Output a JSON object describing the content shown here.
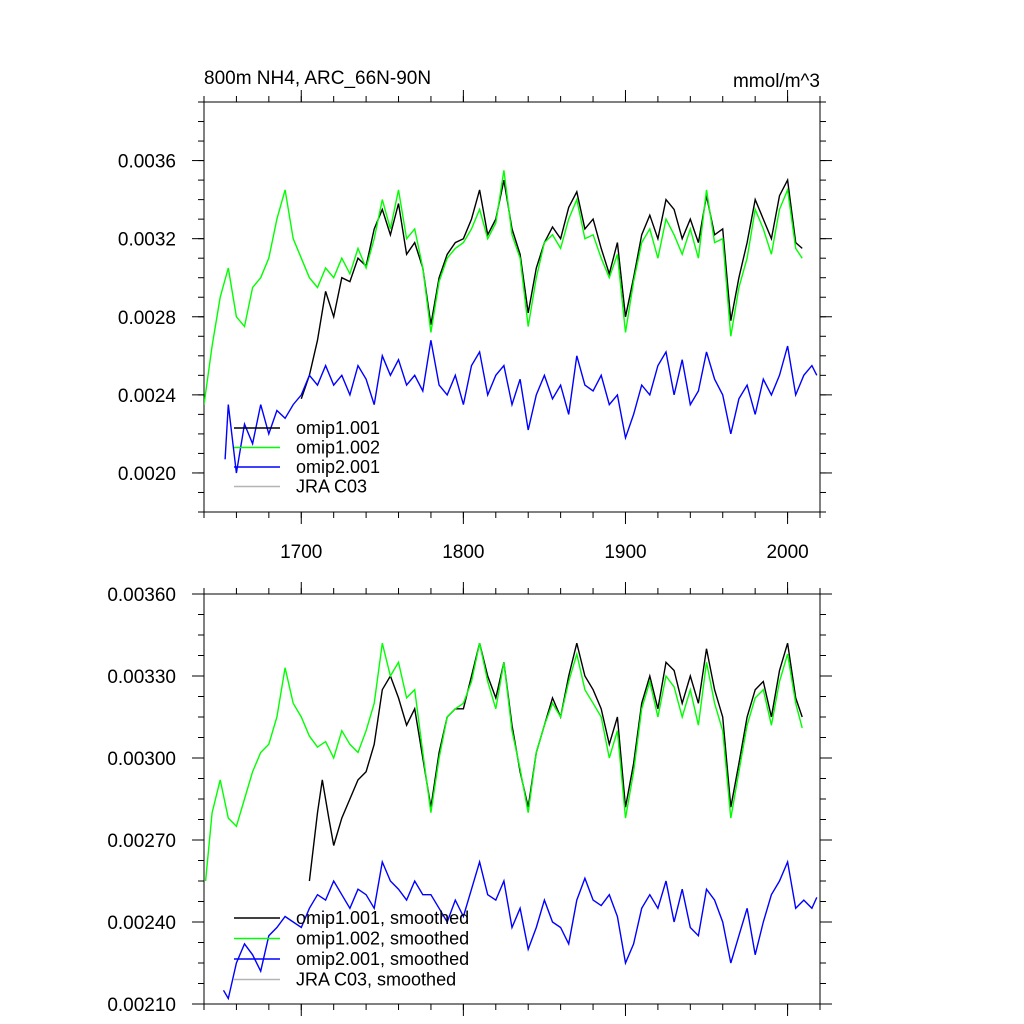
{
  "title_left": "800m NH4, ARC_66N-90N",
  "title_right": "mmol/m^3",
  "chart_data": [
    {
      "type": "line",
      "title": "800m NH4, ARC_66N-90N",
      "units": "mmol/m^3",
      "xlim": [
        1640,
        2020
      ],
      "ylim": [
        0.0018,
        0.0039
      ],
      "xticks": [
        1700,
        1800,
        1900,
        2000
      ],
      "xtick_labels": [
        "1700",
        "1800",
        "1900",
        "2000"
      ],
      "yticks": [
        0.002,
        0.0024,
        0.0028,
        0.0032,
        0.0036
      ],
      "ytick_labels": [
        "0.0020",
        "0.0024",
        "0.0028",
        "0.0032",
        "0.0036"
      ],
      "legend_position": "bottom-left",
      "series": [
        {
          "name": "omip1.001",
          "color": "#000000",
          "x": [
            1700,
            1705,
            1710,
            1715,
            1720,
            1725,
            1730,
            1735,
            1740,
            1745,
            1750,
            1755,
            1760,
            1765,
            1770,
            1775,
            1780,
            1785,
            1790,
            1795,
            1800,
            1805,
            1810,
            1815,
            1820,
            1825,
            1830,
            1835,
            1840,
            1845,
            1850,
            1855,
            1860,
            1865,
            1870,
            1875,
            1880,
            1885,
            1890,
            1895,
            1900,
            1905,
            1910,
            1915,
            1920,
            1925,
            1930,
            1935,
            1940,
            1945,
            1950,
            1955,
            1960,
            1965,
            1970,
            1975,
            1980,
            1985,
            1990,
            1995,
            2000,
            2005,
            2009
          ],
          "y": [
            0.00238,
            0.0025,
            0.00268,
            0.00293,
            0.0028,
            0.003,
            0.00298,
            0.0031,
            0.00306,
            0.00325,
            0.00335,
            0.00322,
            0.00338,
            0.00312,
            0.00318,
            0.00305,
            0.00276,
            0.003,
            0.00312,
            0.00318,
            0.0032,
            0.0033,
            0.00345,
            0.00322,
            0.0033,
            0.0035,
            0.00325,
            0.00312,
            0.00282,
            0.00305,
            0.00318,
            0.00326,
            0.0032,
            0.00336,
            0.00344,
            0.00325,
            0.0033,
            0.00315,
            0.00302,
            0.00318,
            0.0028,
            0.003,
            0.00322,
            0.00332,
            0.0032,
            0.0034,
            0.00335,
            0.0032,
            0.0033,
            0.00318,
            0.00342,
            0.00322,
            0.00325,
            0.00278,
            0.003,
            0.00318,
            0.0034,
            0.0033,
            0.0032,
            0.00342,
            0.0035,
            0.00318,
            0.00315
          ]
        },
        {
          "name": "omip1.002",
          "color": "#00ff00",
          "x": [
            1640,
            1645,
            1650,
            1655,
            1660,
            1665,
            1670,
            1675,
            1680,
            1685,
            1690,
            1695,
            1700,
            1705,
            1710,
            1715,
            1720,
            1725,
            1730,
            1735,
            1740,
            1745,
            1750,
            1755,
            1760,
            1765,
            1770,
            1775,
            1780,
            1785,
            1790,
            1795,
            1800,
            1805,
            1810,
            1815,
            1820,
            1825,
            1830,
            1835,
            1840,
            1845,
            1850,
            1855,
            1860,
            1865,
            1870,
            1875,
            1880,
            1885,
            1890,
            1895,
            1900,
            1905,
            1910,
            1915,
            1920,
            1925,
            1930,
            1935,
            1940,
            1945,
            1950,
            1955,
            1960,
            1965,
            1970,
            1975,
            1980,
            1985,
            1990,
            1995,
            2000,
            2005,
            2009
          ],
          "y": [
            0.00235,
            0.00265,
            0.0029,
            0.00305,
            0.0028,
            0.00275,
            0.00295,
            0.003,
            0.0031,
            0.0033,
            0.00345,
            0.0032,
            0.0031,
            0.003,
            0.00295,
            0.00305,
            0.003,
            0.0031,
            0.00302,
            0.00315,
            0.00305,
            0.0032,
            0.0034,
            0.00325,
            0.00345,
            0.0032,
            0.00325,
            0.00305,
            0.00272,
            0.00298,
            0.0031,
            0.00315,
            0.00318,
            0.00325,
            0.00335,
            0.0032,
            0.00328,
            0.00355,
            0.00322,
            0.0031,
            0.00275,
            0.003,
            0.00318,
            0.00322,
            0.00315,
            0.0033,
            0.0034,
            0.0032,
            0.00322,
            0.0031,
            0.003,
            0.00312,
            0.00272,
            0.00298,
            0.00318,
            0.00325,
            0.0031,
            0.0033,
            0.00322,
            0.00312,
            0.00325,
            0.0031,
            0.00345,
            0.00318,
            0.0032,
            0.0027,
            0.00295,
            0.0031,
            0.00335,
            0.00325,
            0.00312,
            0.00335,
            0.00345,
            0.00315,
            0.0031
          ]
        },
        {
          "name": "omip2.001",
          "color": "#0000ff",
          "x": [
            1653,
            1655,
            1660,
            1665,
            1670,
            1675,
            1680,
            1685,
            1690,
            1695,
            1700,
            1705,
            1710,
            1715,
            1720,
            1725,
            1730,
            1735,
            1740,
            1745,
            1750,
            1755,
            1760,
            1765,
            1770,
            1775,
            1780,
            1785,
            1790,
            1795,
            1800,
            1805,
            1810,
            1815,
            1820,
            1825,
            1830,
            1835,
            1840,
            1845,
            1850,
            1855,
            1860,
            1865,
            1870,
            1875,
            1880,
            1885,
            1890,
            1895,
            1900,
            1905,
            1910,
            1915,
            1920,
            1925,
            1930,
            1935,
            1940,
            1945,
            1950,
            1955,
            1960,
            1965,
            1970,
            1975,
            1980,
            1985,
            1990,
            1995,
            2000,
            2005,
            2010,
            2015,
            2018
          ],
          "y": [
            0.00207,
            0.00235,
            0.002,
            0.00225,
            0.00215,
            0.00235,
            0.0022,
            0.00232,
            0.00228,
            0.00235,
            0.0024,
            0.0025,
            0.00245,
            0.00255,
            0.00245,
            0.0025,
            0.0024,
            0.00255,
            0.00248,
            0.00235,
            0.0026,
            0.0025,
            0.00258,
            0.00245,
            0.0025,
            0.00242,
            0.00268,
            0.00245,
            0.0024,
            0.0025,
            0.00235,
            0.00255,
            0.00262,
            0.0024,
            0.0025,
            0.00255,
            0.00235,
            0.00248,
            0.00222,
            0.0024,
            0.0025,
            0.00238,
            0.00245,
            0.0023,
            0.0026,
            0.00245,
            0.00242,
            0.0025,
            0.00235,
            0.0024,
            0.00218,
            0.0023,
            0.00245,
            0.0024,
            0.00255,
            0.00262,
            0.0024,
            0.00258,
            0.00235,
            0.00242,
            0.00262,
            0.00248,
            0.0024,
            0.0022,
            0.00238,
            0.00245,
            0.0023,
            0.00248,
            0.0024,
            0.0025,
            0.00265,
            0.0024,
            0.0025,
            0.00255,
            0.0025
          ]
        }
      ],
      "legend": [
        {
          "label": "omip1.001",
          "color": "#000000"
        },
        {
          "label": "omip1.002",
          "color": "#00ff00"
        },
        {
          "label": "omip2.001",
          "color": "#0000ff"
        },
        {
          "label": "JRA C03",
          "color": "#b4b4b4"
        }
      ]
    },
    {
      "type": "line",
      "xlim": [
        1640,
        2020
      ],
      "ylim": [
        0.0021,
        0.0036
      ],
      "yticks": [
        0.0021,
        0.0024,
        0.0027,
        0.003,
        0.0033,
        0.0036
      ],
      "ytick_labels": [
        "0.00210",
        "0.00240",
        "0.00270",
        "0.00300",
        "0.00330",
        "0.00360"
      ],
      "xticks": [
        1700,
        1800,
        1900,
        2000
      ],
      "legend_position": "bottom-left",
      "series": [
        {
          "name": "omip1.001, smoothed",
          "color": "#000000",
          "x": [
            1705,
            1710,
            1713,
            1717,
            1720,
            1725,
            1730,
            1735,
            1740,
            1745,
            1750,
            1755,
            1760,
            1765,
            1770,
            1775,
            1780,
            1785,
            1790,
            1795,
            1800,
            1805,
            1810,
            1815,
            1820,
            1825,
            1830,
            1835,
            1840,
            1845,
            1850,
            1855,
            1860,
            1865,
            1870,
            1875,
            1880,
            1885,
            1890,
            1895,
            1900,
            1905,
            1910,
            1915,
            1920,
            1925,
            1930,
            1935,
            1940,
            1945,
            1950,
            1955,
            1960,
            1965,
            1970,
            1975,
            1980,
            1985,
            1990,
            1995,
            2000,
            2005,
            2009
          ],
          "y": [
            0.00255,
            0.0028,
            0.00292,
            0.00278,
            0.00268,
            0.00278,
            0.00285,
            0.00292,
            0.00295,
            0.00305,
            0.00325,
            0.0033,
            0.00322,
            0.00312,
            0.00318,
            0.003,
            0.00282,
            0.00302,
            0.00315,
            0.00318,
            0.00318,
            0.0033,
            0.00342,
            0.0033,
            0.00322,
            0.00335,
            0.00312,
            0.00295,
            0.00282,
            0.00302,
            0.00312,
            0.00322,
            0.00315,
            0.0033,
            0.00342,
            0.0033,
            0.00325,
            0.00318,
            0.00305,
            0.00315,
            0.00282,
            0.00298,
            0.0032,
            0.0033,
            0.00318,
            0.00335,
            0.00332,
            0.0032,
            0.0033,
            0.0032,
            0.0034,
            0.00325,
            0.00315,
            0.00282,
            0.00298,
            0.00315,
            0.00325,
            0.00328,
            0.00315,
            0.00332,
            0.00342,
            0.00322,
            0.00315
          ]
        },
        {
          "name": "omip1.002, smoothed",
          "color": "#00ff00",
          "x": [
            1641,
            1645,
            1650,
            1655,
            1660,
            1665,
            1670,
            1675,
            1680,
            1685,
            1690,
            1695,
            1700,
            1705,
            1710,
            1715,
            1720,
            1725,
            1730,
            1735,
            1740,
            1745,
            1750,
            1755,
            1760,
            1765,
            1770,
            1775,
            1780,
            1785,
            1790,
            1795,
            1800,
            1805,
            1810,
            1815,
            1820,
            1825,
            1830,
            1835,
            1840,
            1845,
            1850,
            1855,
            1860,
            1865,
            1870,
            1875,
            1880,
            1885,
            1890,
            1895,
            1900,
            1905,
            1910,
            1915,
            1920,
            1925,
            1930,
            1935,
            1940,
            1945,
            1950,
            1955,
            1960,
            1965,
            1970,
            1975,
            1980,
            1985,
            1990,
            1995,
            2000,
            2005,
            2009
          ],
          "y": [
            0.00255,
            0.0028,
            0.00292,
            0.00278,
            0.00275,
            0.00285,
            0.00295,
            0.00302,
            0.00305,
            0.00315,
            0.00333,
            0.0032,
            0.00315,
            0.00308,
            0.00304,
            0.00306,
            0.003,
            0.0031,
            0.00305,
            0.00302,
            0.0031,
            0.0032,
            0.00342,
            0.0033,
            0.00335,
            0.00322,
            0.00325,
            0.00302,
            0.0028,
            0.003,
            0.00315,
            0.00318,
            0.0032,
            0.00328,
            0.00342,
            0.00328,
            0.00318,
            0.00335,
            0.0031,
            0.00296,
            0.0028,
            0.00302,
            0.00312,
            0.0032,
            0.00315,
            0.00328,
            0.00338,
            0.00325,
            0.0032,
            0.00315,
            0.003,
            0.0031,
            0.00278,
            0.00295,
            0.00318,
            0.00328,
            0.00315,
            0.0033,
            0.00326,
            0.00315,
            0.00325,
            0.00312,
            0.00335,
            0.0032,
            0.0031,
            0.00278,
            0.00295,
            0.00312,
            0.00322,
            0.00325,
            0.00312,
            0.00328,
            0.00338,
            0.0032,
            0.00311
          ]
        },
        {
          "name": "omip2.001, smoothed",
          "color": "#0000ff",
          "x": [
            1652,
            1655,
            1660,
            1665,
            1670,
            1675,
            1680,
            1685,
            1690,
            1695,
            1700,
            1705,
            1710,
            1715,
            1720,
            1725,
            1730,
            1735,
            1740,
            1745,
            1750,
            1755,
            1760,
            1765,
            1770,
            1775,
            1780,
            1785,
            1790,
            1795,
            1800,
            1805,
            1810,
            1815,
            1820,
            1825,
            1830,
            1835,
            1840,
            1845,
            1850,
            1855,
            1860,
            1865,
            1870,
            1875,
            1880,
            1885,
            1890,
            1895,
            1900,
            1905,
            1910,
            1915,
            1920,
            1925,
            1930,
            1935,
            1940,
            1945,
            1950,
            1955,
            1960,
            1965,
            1970,
            1975,
            1980,
            1985,
            1990,
            1995,
            2000,
            2005,
            2010,
            2015,
            2018
          ],
          "y": [
            0.00215,
            0.00212,
            0.00225,
            0.00232,
            0.00228,
            0.00222,
            0.00235,
            0.00238,
            0.00242,
            0.0024,
            0.00238,
            0.00245,
            0.0025,
            0.00248,
            0.00255,
            0.0025,
            0.00245,
            0.00252,
            0.0025,
            0.00245,
            0.00262,
            0.00255,
            0.00252,
            0.00248,
            0.00255,
            0.0025,
            0.0025,
            0.00245,
            0.0024,
            0.00248,
            0.00242,
            0.00252,
            0.00262,
            0.0025,
            0.00248,
            0.00255,
            0.00238,
            0.00245,
            0.0023,
            0.00238,
            0.00248,
            0.0024,
            0.00238,
            0.00232,
            0.00248,
            0.00256,
            0.00248,
            0.00246,
            0.0025,
            0.00242,
            0.00225,
            0.00232,
            0.00245,
            0.0025,
            0.00245,
            0.00255,
            0.0024,
            0.00252,
            0.00238,
            0.00235,
            0.00252,
            0.00248,
            0.0024,
            0.00225,
            0.00235,
            0.00245,
            0.00228,
            0.0024,
            0.0025,
            0.00255,
            0.00262,
            0.00245,
            0.00248,
            0.00245,
            0.00249
          ]
        }
      ],
      "legend": [
        {
          "label": "omip1.001, smoothed",
          "color": "#000000"
        },
        {
          "label": "omip1.002, smoothed",
          "color": "#00ff00"
        },
        {
          "label": "omip2.001, smoothed",
          "color": "#0000ff"
        },
        {
          "label": "JRA C03, smoothed",
          "color": "#b4b4b4"
        }
      ]
    }
  ]
}
